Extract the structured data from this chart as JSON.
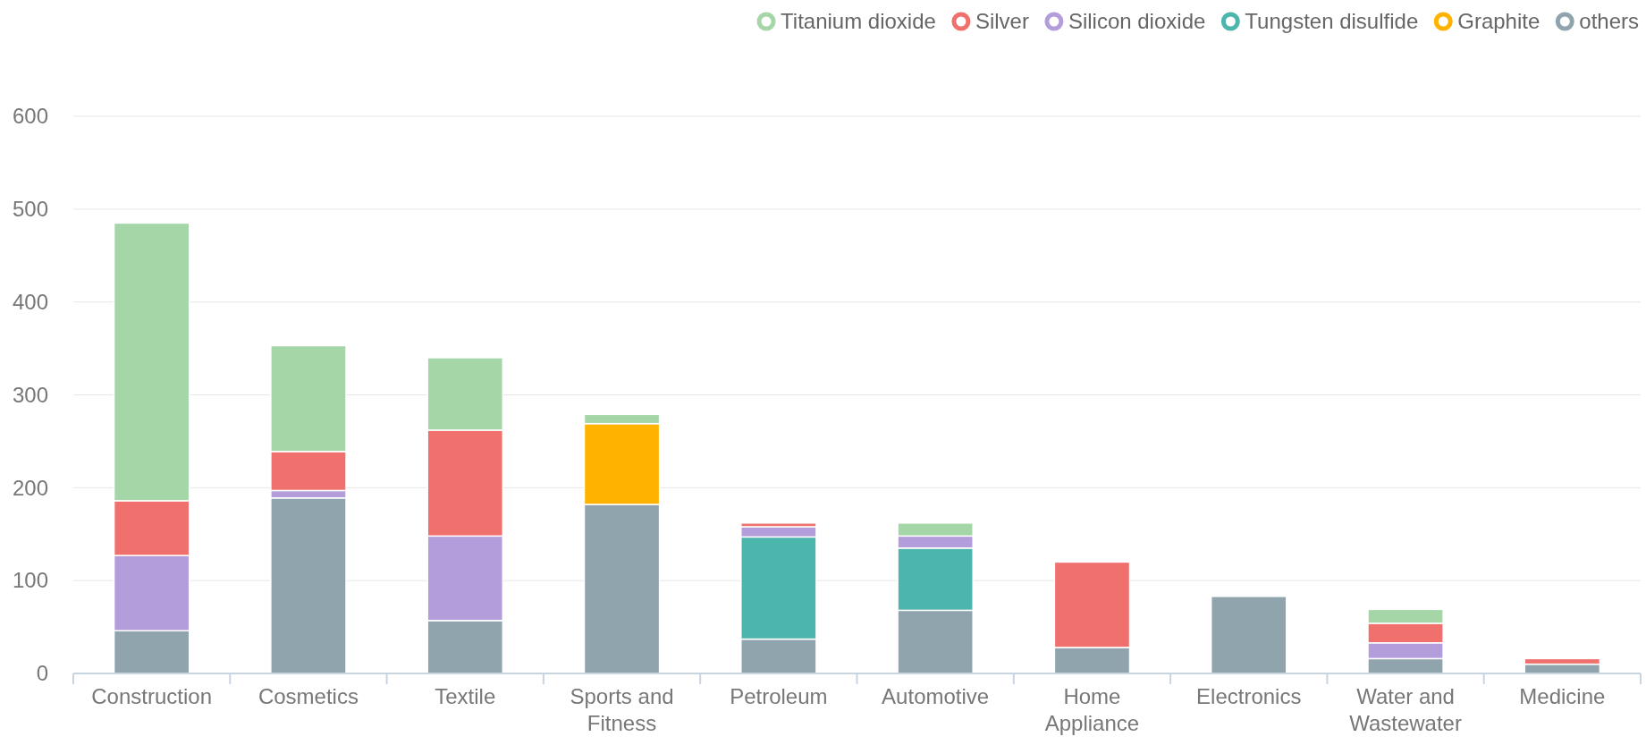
{
  "chart_data": {
    "type": "bar",
    "stacked": true,
    "categories": [
      "Construction",
      "Cosmetics",
      "Textile",
      "Sports and Fitness",
      "Petroleum",
      "Automotive",
      "Home Appliance",
      "Electronics",
      "Water and Wastewater",
      "Medicine"
    ],
    "series": [
      {
        "name": "others",
        "color": "#90a4ae",
        "values": [
          46,
          189,
          57,
          182,
          37,
          68,
          28,
          83,
          16,
          10
        ]
      },
      {
        "name": "Graphite",
        "color": "#ffb300",
        "values": [
          null,
          null,
          null,
          87,
          null,
          null,
          null,
          null,
          null,
          null
        ]
      },
      {
        "name": "Tungsten disulfide",
        "color": "#4db6ac",
        "values": [
          null,
          null,
          null,
          null,
          110,
          67,
          null,
          null,
          null,
          null
        ]
      },
      {
        "name": "Silicon dioxide",
        "color": "#b39ddb",
        "values": [
          81,
          8,
          91,
          null,
          11,
          13,
          null,
          null,
          17,
          null
        ]
      },
      {
        "name": "Silver",
        "color": "#ef706c",
        "values": [
          59,
          42,
          114,
          null,
          4,
          null,
          92,
          null,
          21,
          6
        ]
      },
      {
        "name": "Titanium dioxide",
        "color": "#a5d6a7",
        "values": [
          299,
          114,
          78,
          10,
          null,
          14,
          null,
          null,
          15,
          null
        ]
      }
    ],
    "ylim": [
      0,
      600
    ],
    "yticks": [
      0,
      100,
      200,
      300,
      400,
      500,
      600
    ],
    "grid": "y",
    "legend": "top right"
  }
}
